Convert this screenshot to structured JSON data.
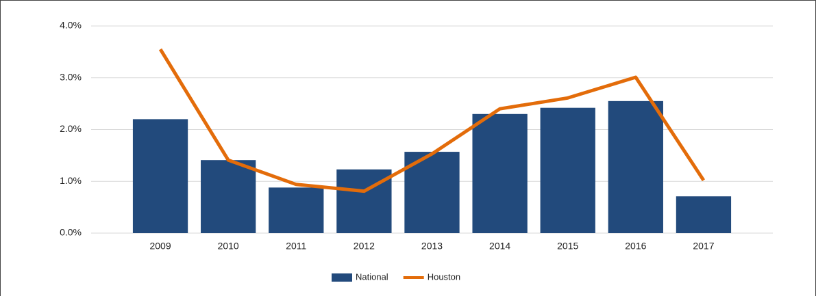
{
  "chart_data": {
    "type": "bar_line",
    "categories": [
      "2009",
      "2010",
      "2011",
      "2012",
      "2013",
      "2014",
      "2015",
      "2016",
      "2017"
    ],
    "series": [
      {
        "name": "National",
        "type": "bar",
        "color": "#224a7c",
        "values": [
          2.2,
          1.41,
          0.88,
          1.23,
          1.57,
          2.3,
          2.42,
          2.55,
          0.71
        ]
      },
      {
        "name": "Houston",
        "type": "line",
        "color": "#e36c0a",
        "values": [
          3.55,
          1.41,
          0.94,
          0.81,
          1.53,
          2.4,
          2.61,
          3.01,
          1.02
        ]
      }
    ],
    "ylim": [
      0,
      4
    ],
    "yticks": [
      {
        "value": 0,
        "label": "0.0%"
      },
      {
        "value": 1,
        "label": "1.0%"
      },
      {
        "value": 2,
        "label": "2.0%"
      },
      {
        "value": 3,
        "label": "3.0%"
      },
      {
        "value": 4,
        "label": "4.0%"
      }
    ],
    "grid": true,
    "legend": "bottom"
  }
}
